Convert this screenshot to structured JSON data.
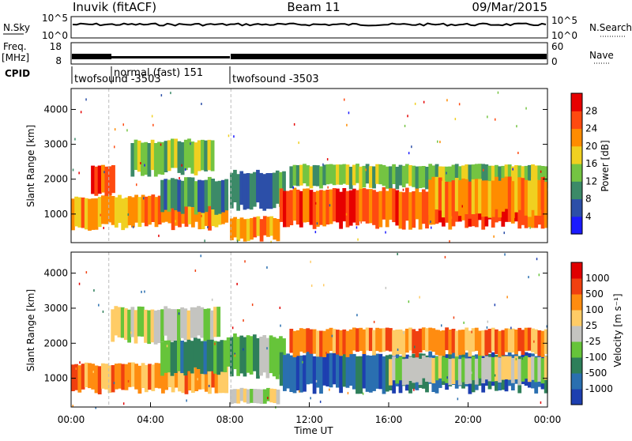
{
  "header": {
    "station": "Inuvik (fitACF)",
    "beam": "Beam 11",
    "date": "09/Mar/2015"
  },
  "status_rows": {
    "nsky_label": "N.Sky",
    "nsky_ticks": [
      "10^5",
      "10^0"
    ],
    "nsearch_label": "N.Search",
    "nsearch_ticks": [
      "10^5",
      "10^0"
    ],
    "freq_label": "Freq.",
    "freq_unit": "[MHz]",
    "freq_ticks": [
      "18",
      "8"
    ],
    "nave_label": "Nave",
    "nave_ticks": [
      "60",
      "0"
    ],
    "cpid_label": "CPID",
    "cpid_segments": [
      {
        "label": "twofsound -3503",
        "start_hour": 0.0,
        "end_hour": 1.9
      },
      {
        "label": "normal (fast) 151",
        "start_hour": 1.9,
        "end_hour": 8.05
      },
      {
        "label": "twofsound -3503",
        "start_hour": 8.05,
        "end_hour": 24.0
      }
    ]
  },
  "chart_data": [
    {
      "type": "heatmap",
      "name": "power",
      "ylabel": "Slant Range [km]",
      "yticks": [
        1000,
        2000,
        3000,
        4000
      ],
      "ylim": [
        180,
        4600
      ],
      "xlim": [
        0,
        24
      ],
      "colorbar_label": "Power [dB]",
      "colorbar_ticks": [
        "4",
        "8",
        "12",
        "16",
        "20",
        "24",
        "28"
      ],
      "colors": [
        "#1a1aff",
        "#2c4fa8",
        "#3c8a68",
        "#74c442",
        "#f0d020",
        "#ff8c00",
        "#ff4a10",
        "#e60000"
      ],
      "bands": [
        {
          "from": 0.0,
          "to": 7.9,
          "range": [
            650,
            1500
          ],
          "lvl": 5
        },
        {
          "from": 1.0,
          "to": 2.2,
          "range": [
            1600,
            2400
          ],
          "lvl": 6
        },
        {
          "from": 3.0,
          "to": 7.2,
          "range": [
            2200,
            3100
          ],
          "lvl": 3
        },
        {
          "from": 4.5,
          "to": 7.9,
          "range": [
            1100,
            2000
          ],
          "lvl": 2
        },
        {
          "from": 8.0,
          "to": 10.5,
          "range": [
            300,
            900
          ],
          "lvl": 5
        },
        {
          "from": 8.0,
          "to": 10.8,
          "range": [
            1200,
            2200
          ],
          "lvl": 2
        },
        {
          "from": 10.5,
          "to": 24.0,
          "range": [
            700,
            1700
          ],
          "lvl": 6
        },
        {
          "from": 11.0,
          "to": 24.0,
          "range": [
            1800,
            2400
          ],
          "lvl": 3
        },
        {
          "from": 18.0,
          "to": 24.0,
          "range": [
            1000,
            2000
          ],
          "lvl": 5
        }
      ]
    },
    {
      "type": "heatmap",
      "name": "velocity",
      "ylabel": "Slant Range [km]",
      "yticks": [
        1000,
        2000,
        3000,
        4000
      ],
      "ylim": [
        180,
        4600
      ],
      "xlim": [
        0,
        24
      ],
      "xticks": [
        "00:00",
        "04:00",
        "08:00",
        "12:00",
        "16:00",
        "20:00",
        "00:00"
      ],
      "xlabel": "Time UT",
      "colorbar_label": "Velocity [m s⁻¹]",
      "colorbar_ticks": [
        "1000",
        "500",
        "100",
        "25",
        "-25",
        "-100",
        "-500",
        "-1000"
      ],
      "colors": [
        "#1d3fb0",
        "#2a6fb0",
        "#2e7f5a",
        "#66c43a",
        "#c4c4c0",
        "#ffcc66",
        "#ff8c10",
        "#f04010",
        "#e00000"
      ],
      "bands": [
        {
          "from": 0.0,
          "to": 7.9,
          "range": [
            650,
            1400
          ],
          "lvl": 6
        },
        {
          "from": 2.0,
          "to": 7.5,
          "range": [
            2100,
            3000
          ],
          "lvl": 4
        },
        {
          "from": 4.5,
          "to": 8.0,
          "range": [
            1200,
            2100
          ],
          "lvl": 2
        },
        {
          "from": 8.0,
          "to": 10.8,
          "range": [
            1100,
            2200
          ],
          "lvl": 3
        },
        {
          "from": 8.0,
          "to": 10.5,
          "range": [
            300,
            700
          ],
          "lvl": 4
        },
        {
          "from": 10.5,
          "to": 24.0,
          "range": [
            700,
            1700
          ],
          "lvl": 1
        },
        {
          "from": 11.0,
          "to": 24.0,
          "range": [
            1700,
            2400
          ],
          "lvl": 6
        },
        {
          "from": 16.0,
          "to": 24.0,
          "range": [
            900,
            1600
          ],
          "lvl": 4
        }
      ]
    }
  ]
}
